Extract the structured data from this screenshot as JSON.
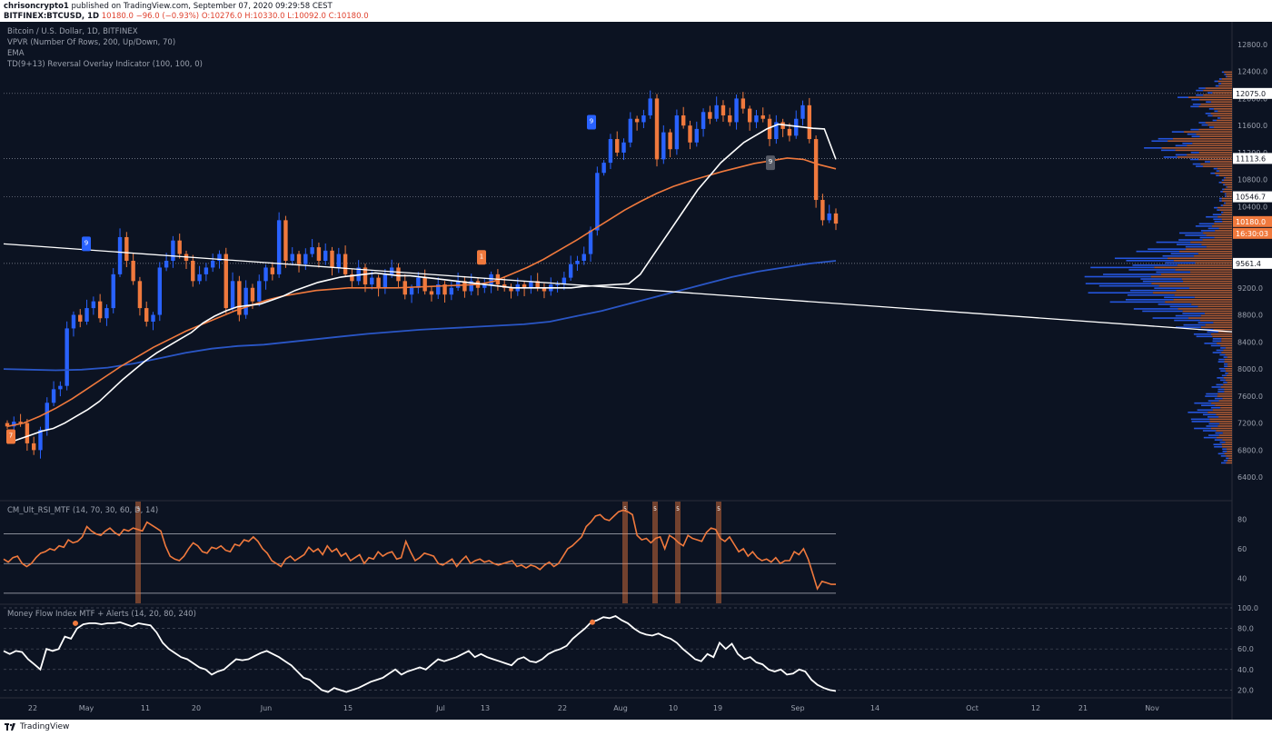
{
  "header": {
    "publisher": "chrisoncrypto1",
    "published_text": "published on TradingView.com, September 07, 2020 09:29:58 CEST",
    "symbol_line_prefix": "BITFINEX:BTCUSD, 1D",
    "last": "10180.0",
    "change": "−96.0 (−0.93%)",
    "open": "O:10276.0",
    "high": "H:10330.0",
    "low": "L:10092.0",
    "close": "C:10180.0"
  },
  "legend": {
    "line1": "Bitcoin / U.S. Dollar, 1D, BITFINEX",
    "line2": "VPVR (Number Of Rows, 200, Up/Down, 70)",
    "line3": "EMA",
    "line4": "TD(9+13) Reversal Overlay Indicator (100, 100, 0)",
    "rsi_label": "CM_Ult_RSI_MTF (14, 70, 30, 60, D, 14)",
    "mfi_label": "Money Flow Index MTF + Alerts (14, 20, 80, 240)"
  },
  "footer": {
    "brand": "TradingView"
  },
  "colors": {
    "bg": "#0c1322",
    "up": "#2962ff",
    "down": "#f0793d",
    "ema_white": "#ffffff",
    "ema_orange": "#f0793d",
    "ema_blue": "#2a56c6"
  },
  "chart_data": [
    {
      "type": "candlestick",
      "title": "Bitcoin / U.S. Dollar, 1D, BITFINEX",
      "ylim": [
        6200,
        13000
      ],
      "y_ticks": [
        6400,
        6800,
        7200,
        7600,
        8000,
        8400,
        8800,
        9200,
        9600,
        10000,
        10400,
        10800,
        11200,
        11600,
        12000,
        12400,
        12800
      ],
      "x_ticks": [
        "22",
        "May",
        "11",
        "20",
        "Jun",
        "15",
        "Jul",
        "13",
        "22",
        "Aug",
        "10",
        "19",
        "Sep",
        "14",
        "Oct",
        "12",
        "21",
        "Nov"
      ],
      "price_labels": [
        {
          "value": 12075.0,
          "text": "12075.0"
        },
        {
          "value": 11113.6,
          "text": "11113.6"
        },
        {
          "value": 10546.7,
          "text": "10546.7"
        },
        {
          "value": 10180.0,
          "text": "10180.0"
        },
        {
          "value": 9561.4,
          "text": "9561.4"
        }
      ],
      "countdown": "16:30:03",
      "candle_close_series": [
        7150,
        7220,
        7200,
        6900,
        6800,
        7100,
        7500,
        7700,
        7750,
        8600,
        8800,
        8700,
        8900,
        9000,
        8750,
        8900,
        9400,
        9950,
        9600,
        9300,
        8900,
        8700,
        8800,
        9500,
        9600,
        9900,
        9700,
        9600,
        9300,
        9400,
        9500,
        9600,
        9700,
        8900,
        9300,
        8800,
        9200,
        9000,
        9300,
        9500,
        9400,
        10200,
        9600,
        9700,
        9550,
        9700,
        9800,
        9600,
        9750,
        9500,
        9700,
        9400,
        9300,
        9500,
        9250,
        9350,
        9200,
        9400,
        9500,
        9300,
        9100,
        9200,
        9350,
        9150,
        9100,
        9250,
        9100,
        9200,
        9300,
        9150,
        9300,
        9200,
        9250,
        9400,
        9250,
        9200,
        9150,
        9250,
        9200,
        9300,
        9200,
        9150,
        9250,
        9250,
        9350,
        9550,
        9600,
        9700,
        10050,
        10900,
        11050,
        11400,
        11200,
        11350,
        11700,
        11650,
        11750,
        12000,
        11100,
        11500,
        11250,
        11750,
        11600,
        11350,
        11550,
        11800,
        11700,
        11900,
        11750,
        11650,
        12000,
        11850,
        11650,
        11750,
        11700,
        11400,
        11650,
        11550,
        11450,
        11700,
        11900,
        11400,
        10500,
        10200,
        10300,
        10150
      ],
      "ema_white_approx": [
        6900,
        6960,
        7020,
        7080,
        7120,
        7200,
        7300,
        7400,
        7520,
        7680,
        7840,
        7980,
        8120,
        8240,
        8340,
        8440,
        8540,
        8680,
        8780,
        8860,
        8920,
        8940,
        8960,
        9020,
        9080,
        9160,
        9220,
        9280,
        9320,
        9360,
        9380,
        9400,
        9420,
        9400,
        9380,
        9380,
        9360,
        9340,
        9320,
        9300,
        9280,
        9260,
        9240,
        9220,
        9200,
        9200,
        9200,
        9200,
        9200,
        9200,
        9220,
        9230,
        9240,
        9250,
        9260,
        9400,
        9650,
        9900,
        10150,
        10400,
        10650,
        10850,
        11050,
        11200,
        11350,
        11450,
        11550,
        11620,
        11600,
        11580,
        11560,
        11550,
        11100
      ],
      "ema_orange_approx": [
        7150,
        7200,
        7300,
        7420,
        7560,
        7720,
        7880,
        8040,
        8180,
        8320,
        8440,
        8560,
        8660,
        8760,
        8860,
        8940,
        9020,
        9080,
        9120,
        9160,
        9180,
        9200,
        9200,
        9200,
        9200,
        9210,
        9220,
        9230,
        9240,
        9250,
        9300,
        9400,
        9500,
        9620,
        9760,
        9900,
        10050,
        10200,
        10350,
        10480,
        10600,
        10700,
        10780,
        10850,
        10920,
        10980,
        11040,
        11080,
        11120,
        11100,
        11020,
        10960
      ],
      "ema_blue_approx": [
        8000,
        7990,
        7980,
        7990,
        8020,
        8080,
        8160,
        8240,
        8300,
        8340,
        8360,
        8400,
        8440,
        8480,
        8520,
        8550,
        8580,
        8600,
        8620,
        8640,
        8660,
        8700,
        8780,
        8860,
        8960,
        9060,
        9160,
        9260,
        9360,
        9440,
        9500,
        9560,
        9600
      ],
      "trendline": {
        "from_value": 9850,
        "to_value": 8550
      },
      "td_markers": [
        "7",
        "9",
        "1",
        "9",
        "9"
      ]
    },
    {
      "type": "line",
      "title": "CM_Ult_RSI_MTF (14, 70, 30, 60, D, 14)",
      "ylim": [
        25,
        90
      ],
      "y_ticks": [
        40,
        60,
        80
      ],
      "levels": [
        70,
        50,
        30
      ],
      "values": [
        53,
        51,
        54,
        55,
        50,
        48,
        50,
        54,
        57,
        58,
        60,
        59,
        62,
        61,
        66,
        64,
        65,
        68,
        75,
        72,
        70,
        69,
        72,
        74,
        71,
        69,
        73,
        72,
        74,
        73,
        72,
        78,
        76,
        74,
        72,
        62,
        55,
        53,
        52,
        55,
        60,
        64,
        62,
        58,
        57,
        61,
        60,
        62,
        59,
        58,
        63,
        62,
        66,
        65,
        68,
        65,
        60,
        57,
        52,
        50,
        48,
        53,
        55,
        52,
        54,
        56,
        61,
        58,
        60,
        56,
        62,
        58,
        60,
        55,
        57,
        52,
        54,
        56,
        50,
        54,
        53,
        58,
        55,
        57,
        58,
        53,
        54,
        65,
        58,
        52,
        54,
        57,
        56,
        55,
        50,
        49,
        51,
        53,
        48,
        52,
        55,
        50,
        52,
        53,
        51,
        52,
        50,
        49,
        50,
        51,
        52,
        48,
        49,
        47,
        49,
        48,
        46,
        49,
        51,
        48,
        50,
        55,
        60,
        62,
        65,
        68,
        75,
        78,
        82,
        83,
        80,
        79,
        82,
        85,
        86,
        85,
        83,
        69,
        66,
        67,
        64,
        67,
        68,
        60,
        69,
        67,
        64,
        62,
        69,
        67,
        66,
        65,
        71,
        74,
        73,
        67,
        65,
        68,
        63,
        58,
        60,
        55,
        58,
        54,
        52,
        53,
        51,
        54,
        50,
        52,
        52,
        58,
        56,
        60,
        53,
        43,
        33,
        38,
        37,
        36,
        36
      ],
      "marker_labels": [
        "5",
        "5",
        "5",
        "5",
        "5"
      ]
    },
    {
      "type": "line",
      "title": "Money Flow Index MTF + Alerts (14, 20, 80, 240)",
      "ylim": [
        15,
        100
      ],
      "y_ticks": [
        20.0,
        40.0,
        60.0,
        80.0,
        100.0
      ],
      "values": [
        58,
        55,
        58,
        57,
        50,
        45,
        40,
        60,
        58,
        60,
        72,
        70,
        80,
        84,
        85,
        85,
        84,
        85,
        85,
        86,
        84,
        82,
        85,
        84,
        83,
        76,
        66,
        60,
        56,
        52,
        50,
        46,
        42,
        40,
        35,
        38,
        40,
        45,
        50,
        49,
        50,
        53,
        56,
        58,
        55,
        52,
        48,
        44,
        38,
        32,
        30,
        25,
        20,
        18,
        22,
        20,
        18,
        20,
        22,
        25,
        28,
        30,
        32,
        36,
        40,
        35,
        38,
        40,
        42,
        40,
        45,
        50,
        48,
        50,
        52,
        55,
        58,
        52,
        55,
        52,
        50,
        48,
        46,
        44,
        50,
        52,
        48,
        47,
        50,
        55,
        58,
        60,
        63,
        70,
        75,
        80,
        86,
        88,
        91,
        90,
        92,
        88,
        85,
        80,
        76,
        74,
        73,
        75,
        72,
        70,
        66,
        60,
        55,
        50,
        48,
        55,
        52,
        66,
        60,
        65,
        55,
        50,
        52,
        47,
        45,
        40,
        38,
        40,
        35,
        36,
        40,
        38,
        30,
        25,
        22,
        20,
        19
      ]
    }
  ]
}
